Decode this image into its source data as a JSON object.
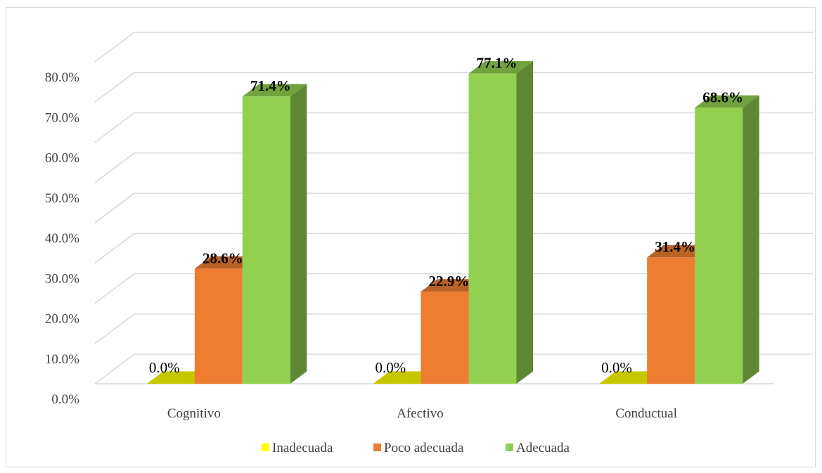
{
  "chart_data": {
    "type": "bar",
    "categories": [
      "Cognitivo",
      "Afectivo",
      "Conductual"
    ],
    "series": [
      {
        "name": "Inadecuada",
        "values": [
          0.0,
          0.0,
          0.0
        ],
        "color": "#ffff00"
      },
      {
        "name": "Poco adecuada",
        "values": [
          28.6,
          22.9,
          31.4
        ],
        "color": "#ed7d31"
      },
      {
        "name": "Adecuada",
        "values": [
          71.4,
          77.1,
          68.6
        ],
        "color": "#92d050"
      }
    ],
    "data_labels": [
      [
        "0.0%",
        "0.0%",
        "0.0%"
      ],
      [
        "28.6%",
        "22.9%",
        "31.4%"
      ],
      [
        "71.4%",
        "77.1%",
        "68.6%"
      ]
    ],
    "y_ticks": [
      "0.0%",
      "10.0%",
      "20.0%",
      "30.0%",
      "40.0%",
      "50.0%",
      "60.0%",
      "70.0%",
      "80.0%"
    ],
    "ylim": [
      0,
      80
    ],
    "grid": true,
    "legend_position": "bottom",
    "style": "3d-clustered-column"
  }
}
